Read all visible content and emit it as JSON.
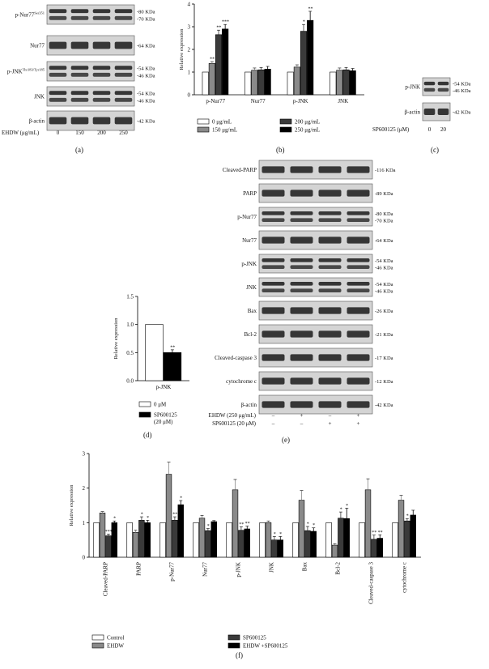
{
  "panel_a": {
    "letter": "(a)",
    "rows": [
      {
        "label": "p-Nur77",
        "sup": "Ser351",
        "kda": [
          "-80 KDa",
          "-70 KDa"
        ]
      },
      {
        "label": "Nur77",
        "sup": "",
        "kda": [
          "-64 KDa"
        ]
      },
      {
        "label": "p-JNK",
        "sup": "Thr183/Tyr185",
        "kda": [
          "-54 KDa",
          "-46 KDa"
        ]
      },
      {
        "label": "JNK",
        "sup": "",
        "kda": [
          "-54 KDa",
          "-46 KDa"
        ]
      },
      {
        "label": "β-actin",
        "sup": "",
        "kda": [
          "-42 KDa"
        ]
      }
    ],
    "treatment_label": "EHDW (μg/mL)",
    "doses": [
      "0",
      "150",
      "200",
      "250"
    ]
  },
  "panel_b": {
    "letter": "(b)",
    "legend": [
      "0 μg/mL",
      "150 μg/mL",
      "200 μg/mL",
      "250 μg/mL"
    ]
  },
  "panel_c": {
    "letter": "(c)",
    "rows": [
      {
        "label": "p-JNK",
        "kda": [
          "-54 KDa",
          "-46 KDa"
        ]
      },
      {
        "label": "β-actin",
        "kda": [
          "-42 KDa"
        ]
      }
    ],
    "treatment_label": "SP600125 (μM)",
    "doses": [
      "0",
      "20"
    ]
  },
  "panel_d": {
    "letter": "(d)",
    "legend": [
      "0 μM",
      "SP600125",
      "(20 μM)"
    ]
  },
  "panel_e": {
    "letter": "(e)",
    "rows": [
      {
        "label": "Cleaved-PARP",
        "kda": [
          "-116 KDa"
        ]
      },
      {
        "label": "PARP",
        "kda": [
          "-89 KDa"
        ]
      },
      {
        "label": "p-Nur77",
        "kda": [
          "-80 KDa",
          "-70 KDa"
        ]
      },
      {
        "label": "Nur77",
        "kda": [
          "-64 KDa"
        ]
      },
      {
        "label": "p-JNK",
        "kda": [
          "-54 KDa",
          "-46 KDa"
        ]
      },
      {
        "label": "JNK",
        "kda": [
          "-54 KDa",
          "-46 KDa"
        ]
      },
      {
        "label": "Bax",
        "kda": [
          "-26 KDa"
        ]
      },
      {
        "label": "Bcl-2",
        "kda": [
          "-21 KDa"
        ]
      },
      {
        "label": "Cleaved-caspase 3",
        "kda": [
          "-17 KDa"
        ]
      },
      {
        "label": "cytochrome c",
        "kda": [
          "-12 KDa"
        ]
      },
      {
        "label": "β-actin",
        "kda": [
          "-42 KDa"
        ]
      }
    ],
    "treat_rows": [
      {
        "label": "EHDW (250 μg/mL)",
        "signs": [
          "–",
          "+",
          "–",
          "+"
        ]
      },
      {
        "label": "SP600125 (20 μM)",
        "signs": [
          "–",
          "–",
          "+",
          "+"
        ]
      }
    ]
  },
  "panel_f": {
    "letter": "(f)",
    "legend": [
      "Control",
      "EHDW",
      "SP600125",
      "EHDW +SP600125"
    ]
  },
  "colors": {
    "white": "#ffffff",
    "light_gray": "#8a8a8a",
    "dark_gray": "#3a3a3a",
    "black": "#000000",
    "blot_bg": "#d4d4d4",
    "band": "#1a1a1a"
  },
  "chart_data": [
    {
      "id": "b",
      "type": "bar",
      "ylabel": "Relative expression",
      "ylim": [
        0,
        4
      ],
      "yticks": [
        "0",
        "1",
        "2",
        "3",
        "4"
      ],
      "categories": [
        "p-Nur77",
        "Nur77",
        "p-JNK",
        "JNK"
      ],
      "series": [
        {
          "name": "0 μg/mL",
          "values": [
            1.0,
            1.0,
            1.0,
            1.0
          ],
          "errors": [
            0,
            0,
            0,
            0
          ],
          "color": "#ffffff"
        },
        {
          "name": "150 μg/mL",
          "values": [
            1.38,
            1.08,
            1.22,
            1.08
          ],
          "errors": [
            0.08,
            0.1,
            0.1,
            0.1
          ],
          "color": "#8a8a8a"
        },
        {
          "name": "200 μg/mL",
          "values": [
            2.65,
            1.1,
            2.8,
            1.1
          ],
          "errors": [
            0.2,
            0.1,
            0.3,
            0.1
          ],
          "color": "#3a3a3a"
        },
        {
          "name": "250 μg/mL",
          "values": [
            2.9,
            1.13,
            3.28,
            1.06
          ],
          "errors": [
            0.2,
            0.12,
            0.4,
            0.1
          ],
          "color": "#000000"
        }
      ],
      "annotations": [
        [
          "",
          "**",
          "**",
          "***"
        ],
        [
          "",
          "",
          "",
          ""
        ],
        [
          "",
          "",
          "*",
          "**"
        ],
        [
          "",
          "",
          "",
          ""
        ]
      ]
    },
    {
      "id": "d",
      "type": "bar",
      "ylabel": "Relative expression",
      "ylim": [
        0,
        1.5
      ],
      "yticks": [
        "0.0",
        "0.5",
        "1.0",
        "1.5"
      ],
      "categories": [
        "p-JNK"
      ],
      "series": [
        {
          "name": "0 μM",
          "values": [
            1.0
          ],
          "errors": [
            0
          ],
          "color": "#ffffff"
        },
        {
          "name": "SP600125 (20 μM)",
          "values": [
            0.5
          ],
          "errors": [
            0.05
          ],
          "color": "#000000"
        }
      ],
      "annotations": [
        [
          "",
          "**"
        ]
      ]
    },
    {
      "id": "f",
      "type": "bar",
      "ylabel": "Relative expression",
      "ylim": [
        0,
        3
      ],
      "yticks": [
        "0",
        "1",
        "2",
        "3"
      ],
      "categories": [
        "Cleaved-PARP",
        "PARP",
        "p-Nur77",
        "Nur77",
        "p-JNK",
        "JNK",
        "Bax",
        "Bcl-2",
        "Cleaved-caspase 3",
        "cytochrome c"
      ],
      "series": [
        {
          "name": "Control",
          "values": [
            1,
            1,
            1,
            1,
            1,
            1,
            1,
            1,
            1,
            1
          ],
          "errors": [
            0,
            0,
            0,
            0,
            0,
            0,
            0,
            0,
            0,
            0
          ],
          "color": "#ffffff"
        },
        {
          "name": "EHDW",
          "values": [
            1.28,
            0.72,
            2.4,
            1.13,
            1.95,
            1.0,
            1.65,
            0.35,
            1.95,
            1.65
          ],
          "errors": [
            0.04,
            0.06,
            0.35,
            0.08,
            0.3,
            0.05,
            0.28,
            0.04,
            0.32,
            0.14
          ],
          "color": "#8a8a8a"
        },
        {
          "name": "SP600125",
          "values": [
            0.62,
            1.07,
            1.07,
            0.77,
            0.78,
            0.5,
            0.77,
            1.13,
            0.52,
            1.05
          ],
          "errors": [
            0.05,
            0.1,
            0.1,
            0.06,
            0.1,
            0.1,
            0.12,
            0.18,
            0.12,
            0.07
          ],
          "color": "#3a3a3a"
        },
        {
          "name": "EHDW +SP600125",
          "values": [
            1.0,
            1.0,
            1.52,
            1.03,
            0.82,
            0.5,
            0.75,
            1.12,
            0.55,
            1.22
          ],
          "errors": [
            0.05,
            0.07,
            0.12,
            0.03,
            0.08,
            0.1,
            0.1,
            0.3,
            0.1,
            0.14
          ],
          "color": "#000000"
        }
      ],
      "annotations": [
        [
          "",
          "",
          "***",
          "*"
        ],
        [
          "",
          "",
          "*",
          "*"
        ],
        [
          "",
          "",
          "**",
          "*"
        ],
        [
          "",
          "",
          "*",
          ""
        ],
        [
          "",
          "",
          "**",
          "**"
        ],
        [
          "",
          "",
          "*",
          "*"
        ],
        [
          "",
          "",
          "*",
          "*"
        ],
        [
          "",
          "",
          "*",
          "*"
        ],
        [
          "",
          "",
          "**",
          "**"
        ],
        [
          "",
          "",
          "*",
          ""
        ]
      ]
    }
  ]
}
